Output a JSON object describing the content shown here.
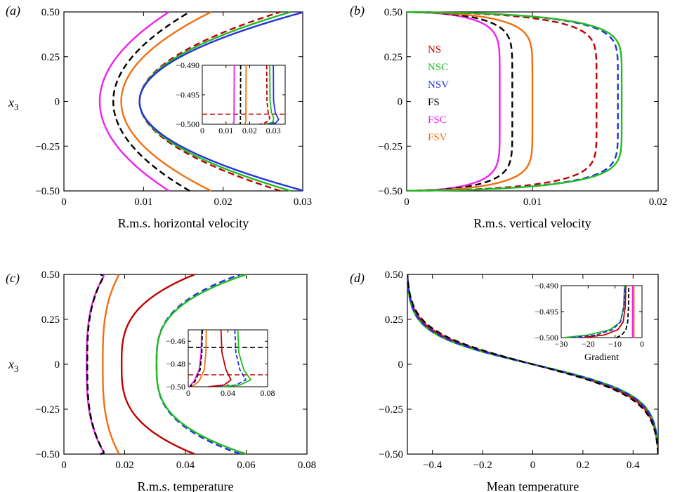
{
  "colors": {
    "NS": "#c00000",
    "NSC": "#22bb22",
    "NSV": "#2233dd",
    "FS": "#000000",
    "FSC": "#ee22ee",
    "FSV": "#f07010"
  },
  "legend": {
    "placement": "top-left inside panel (b)",
    "entries": [
      "NS",
      "NSC",
      "NSV",
      "FS",
      "FSC",
      "FSV"
    ]
  },
  "chart_data": [
    {
      "id": "a",
      "type": "line",
      "panel_label": "(a)",
      "title": "",
      "xlabel": "R.m.s. horizontal velocity",
      "ylabel": "x3",
      "xlim": [
        0,
        0.03
      ],
      "ylim": [
        -0.5,
        0.5
      ],
      "xticks": [
        "0",
        "0.01",
        "0.02",
        "0.03"
      ],
      "yticks": [
        "−0.50",
        "−0.25",
        "0",
        "0.25",
        "0.50"
      ],
      "grid": false,
      "series": [
        {
          "name": "FSC",
          "style": "solid",
          "profile": "parabolic",
          "center": 0.0045,
          "edge": 0.0132
        },
        {
          "name": "FS",
          "style": "dashed",
          "profile": "parabolic",
          "center": 0.0062,
          "edge": 0.0158
        },
        {
          "name": "FSV",
          "style": "solid",
          "profile": "parabolic",
          "center": 0.0072,
          "edge": 0.0185
        },
        {
          "name": "NS",
          "style": "dashed",
          "profile": "parabolic",
          "center": 0.0095,
          "edge": 0.0272
        },
        {
          "name": "NSC",
          "style": "solid",
          "profile": "parabolic",
          "center": 0.0095,
          "edge": 0.0285
        },
        {
          "name": "NSV",
          "style": "solid",
          "profile": "parabolic",
          "center": 0.0095,
          "edge": 0.0302
        }
      ],
      "inset": {
        "xlim": [
          0,
          0.035
        ],
        "ylim": [
          -0.5,
          -0.49
        ],
        "xticks": [
          "0",
          "0.01",
          "0.02",
          "0.03"
        ],
        "yticks": [
          "−0.500",
          "−0.495",
          "−0.490"
        ],
        "series": [
          {
            "name": "FSC",
            "points": [
              [
                0.0135,
                -0.49
              ],
              [
                0.0134,
                -0.4995
              ],
              [
                0.013,
                -0.5
              ]
            ]
          },
          {
            "name": "FS",
            "points": [
              [
                0.0162,
                -0.49
              ],
              [
                0.0161,
                -0.4995
              ],
              [
                0.016,
                -0.5
              ]
            ]
          },
          {
            "name": "FSV",
            "points": [
              [
                0.0185,
                -0.49
              ],
              [
                0.0184,
                -0.4995
              ],
              [
                0.018,
                -0.5
              ]
            ]
          },
          {
            "name": "NS",
            "points": [
              [
                0.0272,
                -0.49
              ],
              [
                0.0273,
                -0.496
              ],
              [
                0.0278,
                -0.498
              ],
              [
                0.0285,
                -0.499
              ],
              [
                0.027,
                -0.4997
              ],
              [
                0.0242,
                -0.5
              ]
            ]
          },
          {
            "name": "NSC",
            "points": [
              [
                0.0285,
                -0.49
              ],
              [
                0.0286,
                -0.496
              ],
              [
                0.0292,
                -0.498
              ],
              [
                0.0302,
                -0.499
              ],
              [
                0.0296,
                -0.4997
              ],
              [
                0.0265,
                -0.5
              ]
            ]
          },
          {
            "name": "NSV",
            "points": [
              [
                0.03,
                -0.49
              ],
              [
                0.0301,
                -0.496
              ],
              [
                0.0308,
                -0.498
              ],
              [
                0.0322,
                -0.4992
              ],
              [
                0.031,
                -0.4998
              ],
              [
                0.0275,
                -0.5
              ]
            ]
          }
        ],
        "hlines": [
          {
            "name": "NS",
            "y": -0.4983
          }
        ]
      }
    },
    {
      "id": "b",
      "type": "line",
      "panel_label": "(b)",
      "title": "",
      "xlabel": "R.m.s. vertical velocity",
      "ylabel": "",
      "xlim": [
        0,
        0.02
      ],
      "ylim": [
        -0.5,
        0.5
      ],
      "xticks": [
        "0",
        "0.01",
        "0.02"
      ],
      "yticks": [
        "−0.50",
        "−0.25",
        "0",
        "0.25",
        "0.50"
      ],
      "grid": false,
      "series": [
        {
          "name": "FSC",
          "style": "solid",
          "profile": "blunt",
          "center": 0.0074
        },
        {
          "name": "FS",
          "style": "dashed",
          "profile": "blunt",
          "center": 0.0084
        },
        {
          "name": "FSV",
          "style": "solid",
          "profile": "blunt",
          "center": 0.01
        },
        {
          "name": "NS",
          "style": "dashed",
          "profile": "blunt",
          "center": 0.0151
        },
        {
          "name": "NSV",
          "style": "dashed",
          "profile": "blunt",
          "center": 0.0168
        },
        {
          "name": "NSC",
          "style": "solid",
          "profile": "blunt",
          "center": 0.0171
        }
      ]
    },
    {
      "id": "c",
      "type": "line",
      "panel_label": "(c)",
      "title": "",
      "xlabel": "R.m.s. temperature",
      "ylabel": "x3",
      "xlim": [
        0,
        0.08
      ],
      "ylim": [
        -0.5,
        0.5
      ],
      "xticks": [
        "0",
        "0.02",
        "0.04",
        "0.06",
        "0.08"
      ],
      "yticks": [
        "−0.50",
        "−0.25",
        "0",
        "0.25",
        "0.50"
      ],
      "grid": false,
      "series": [
        {
          "name": "FSC",
          "style": "solid",
          "profile": "peaked",
          "center": 0.0075,
          "peak": 0.0135,
          "edge": 0.012
        },
        {
          "name": "FS",
          "style": "dashed",
          "profile": "peaked",
          "center": 0.0077,
          "peak": 0.0135,
          "edge": 0.012
        },
        {
          "name": "FSV",
          "style": "solid",
          "profile": "peaked",
          "center": 0.0128,
          "peak": 0.0182,
          "edge": 0.0175
        },
        {
          "name": "NS",
          "style": "solid",
          "profile": "peaked",
          "center": 0.019,
          "peak": 0.043,
          "edge": 0.043
        },
        {
          "name": "NSV",
          "style": "dashed",
          "profile": "peaked",
          "center": 0.0305,
          "peak": 0.058,
          "edge": 0.058
        },
        {
          "name": "NSC",
          "style": "solid",
          "profile": "peaked",
          "center": 0.0305,
          "peak": 0.06,
          "edge": 0.06
        }
      ],
      "inset": {
        "xlim": [
          0,
          0.08
        ],
        "ylim": [
          -0.5,
          -0.45
        ],
        "xticks": [
          "0",
          "0.04",
          "0.08"
        ],
        "yticks": [
          "−0.50",
          "−0.48",
          "−0.46"
        ],
        "series": [
          {
            "name": "FSC",
            "points": [
              [
                0.0135,
                -0.45
              ],
              [
                0.013,
                -0.47
              ],
              [
                0.011,
                -0.485
              ],
              [
                0.006,
                -0.495
              ],
              [
                0.001,
                -0.5
              ]
            ]
          },
          {
            "name": "FS",
            "points": [
              [
                0.0142,
                -0.45
              ],
              [
                0.0137,
                -0.47
              ],
              [
                0.012,
                -0.485
              ],
              [
                0.007,
                -0.495
              ],
              [
                0.002,
                -0.5
              ]
            ]
          },
          {
            "name": "FSV",
            "points": [
              [
                0.0182,
                -0.45
              ],
              [
                0.0178,
                -0.47
              ],
              [
                0.0162,
                -0.485
              ],
              [
                0.011,
                -0.495
              ],
              [
                0.004,
                -0.5
              ]
            ]
          },
          {
            "name": "NS",
            "points": [
              [
                0.033,
                -0.45
              ],
              [
                0.034,
                -0.47
              ],
              [
                0.038,
                -0.485
              ],
              [
                0.043,
                -0.494
              ],
              [
                0.036,
                -0.4985
              ],
              [
                0.02,
                -0.5
              ]
            ]
          },
          {
            "name": "NSV",
            "points": [
              [
                0.047,
                -0.45
              ],
              [
                0.048,
                -0.47
              ],
              [
                0.052,
                -0.485
              ],
              [
                0.058,
                -0.494
              ],
              [
                0.048,
                -0.4985
              ],
              [
                0.03,
                -0.5
              ]
            ]
          },
          {
            "name": "NSC",
            "points": [
              [
                0.05,
                -0.45
              ],
              [
                0.051,
                -0.47
              ],
              [
                0.056,
                -0.485
              ],
              [
                0.063,
                -0.494
              ],
              [
                0.052,
                -0.4985
              ],
              [
                0.034,
                -0.5
              ]
            ]
          }
        ],
        "hlines": [
          {
            "name": "FS",
            "y": -0.4655
          },
          {
            "name": "NS",
            "y": -0.4895
          }
        ]
      }
    },
    {
      "id": "d",
      "type": "line",
      "panel_label": "(d)",
      "title": "",
      "xlabel": "Mean temperature",
      "ylabel": "",
      "xlim": [
        -0.5,
        0.5
      ],
      "ylim": [
        -0.5,
        0.5
      ],
      "xticks": [
        "−0.4",
        "−0.2",
        "0",
        "0.2",
        "0.4"
      ],
      "yticks": [
        "−0.50",
        "−0.25",
        "0",
        "0.25",
        "0.50"
      ],
      "grid": false,
      "series": [
        {
          "name": "FSV",
          "style": "solid",
          "profile": "tanh",
          "width": 0.18
        },
        {
          "name": "FSC",
          "style": "solid",
          "profile": "tanh",
          "width": 0.175
        },
        {
          "name": "NS",
          "style": "solid",
          "profile": "tanh",
          "width": 0.172
        },
        {
          "name": "NSC",
          "style": "solid",
          "profile": "tanh",
          "width": 0.165
        },
        {
          "name": "NSV",
          "style": "dashed",
          "profile": "tanh",
          "width": 0.168
        },
        {
          "name": "FS",
          "style": "dashed",
          "profile": "tanh",
          "width": 0.185
        }
      ],
      "inset": {
        "xlabel": "Gradient",
        "xlim": [
          -30,
          0
        ],
        "ylim": [
          -0.5,
          -0.49
        ],
        "xticks": [
          "−30",
          "−20",
          "−10",
          "0"
        ],
        "yticks": [
          "−0.500",
          "−0.495",
          "−0.490"
        ],
        "series": [
          {
            "name": "NSC",
            "points": [
              [
                -29,
                -0.5
              ],
              [
                -20,
                -0.4995
              ],
              [
                -12,
                -0.4985
              ],
              [
                -8,
                -0.497
              ],
              [
                -6.8,
                -0.494
              ],
              [
                -6.5,
                -0.49
              ]
            ]
          },
          {
            "name": "NSV",
            "points": [
              [
                -26,
                -0.5
              ],
              [
                -17,
                -0.4995
              ],
              [
                -11,
                -0.4985
              ],
              [
                -8,
                -0.497
              ],
              [
                -6.7,
                -0.494
              ],
              [
                -6.4,
                -0.49
              ]
            ]
          },
          {
            "name": "NS",
            "points": [
              [
                -22,
                -0.5
              ],
              [
                -14,
                -0.4995
              ],
              [
                -9,
                -0.4985
              ],
              [
                -7,
                -0.497
              ],
              [
                -6.2,
                -0.494
              ],
              [
                -6.0,
                -0.49
              ]
            ]
          },
          {
            "name": "FS",
            "points": [
              [
                -9.5,
                -0.5
              ],
              [
                -7.5,
                -0.4995
              ],
              [
                -6,
                -0.4985
              ],
              [
                -5.3,
                -0.497
              ],
              [
                -5.0,
                -0.494
              ],
              [
                -4.9,
                -0.49
              ]
            ]
          },
          {
            "name": "FSC",
            "points": [
              [
                -3.5,
                -0.5
              ],
              [
                -3.5,
                -0.49
              ]
            ]
          },
          {
            "name": "FSV",
            "points": [
              [
                -3.0,
                -0.5
              ],
              [
                -3.0,
                -0.49
              ]
            ]
          }
        ]
      }
    }
  ]
}
